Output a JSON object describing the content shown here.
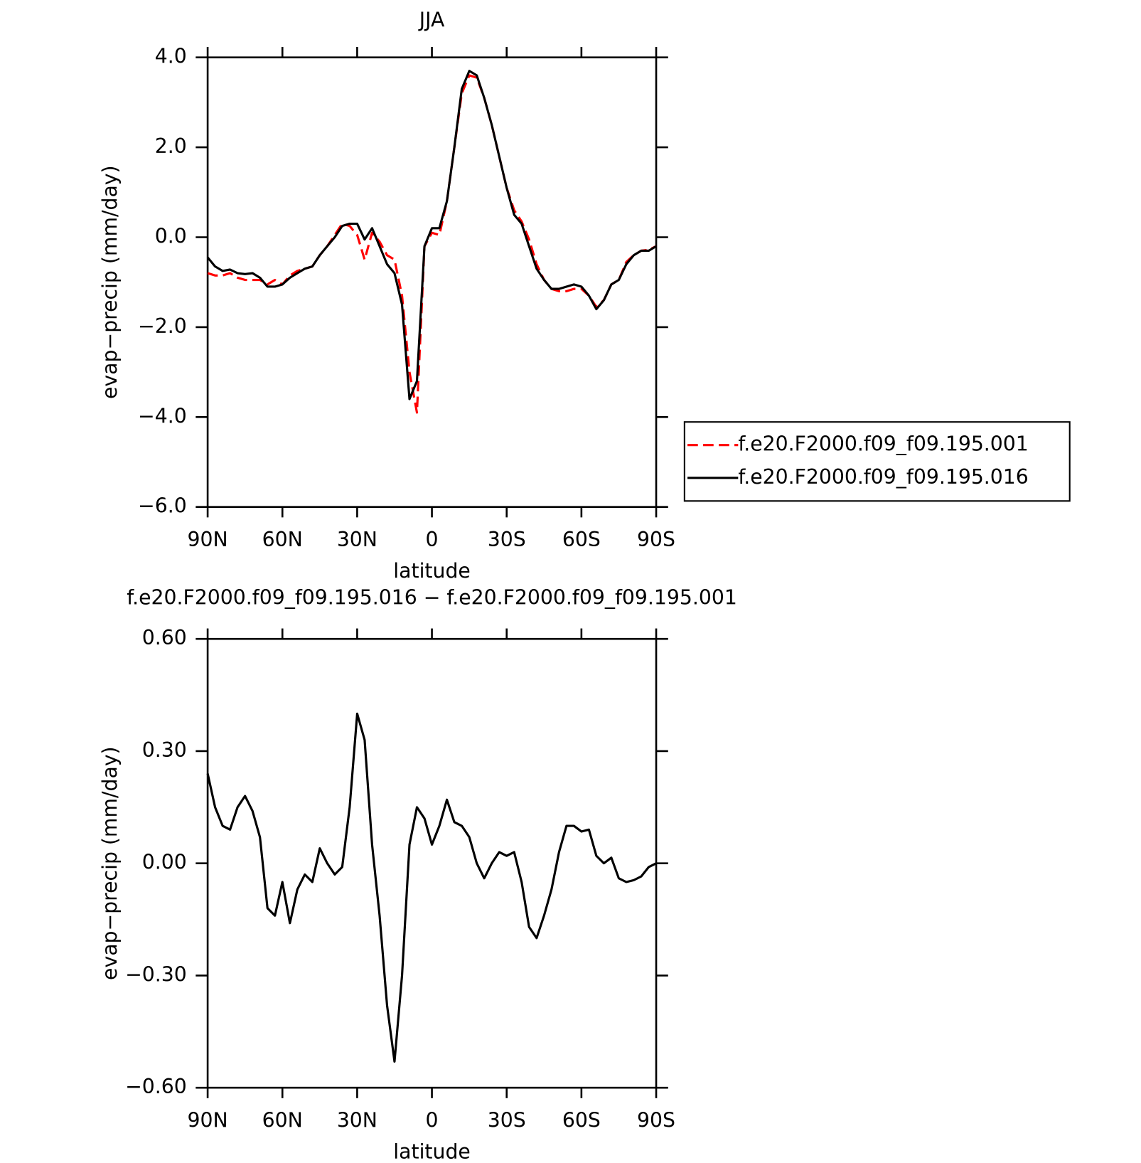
{
  "chart_data": [
    {
      "type": "line",
      "title": "JJA",
      "xlabel": "latitude",
      "ylabel": "evap−precip (mm/day)",
      "x": [
        90,
        87,
        84,
        81,
        78,
        75,
        72,
        69,
        66,
        63,
        60,
        57,
        54,
        51,
        48,
        45,
        42,
        39,
        36,
        33,
        30,
        27,
        24,
        21,
        18,
        15,
        12,
        9,
        6,
        3,
        0,
        -3,
        -6,
        -9,
        -12,
        -15,
        -18,
        -21,
        -24,
        -27,
        -30,
        -33,
        -36,
        -39,
        -42,
        -45,
        -48,
        -51,
        -54,
        -57,
        -60,
        -63,
        -66,
        -69,
        -72,
        -75,
        -78,
        -81,
        -84,
        -87,
        -90
      ],
      "xlim": [
        90,
        -90
      ],
      "xticks": [
        {
          "value": 90,
          "label": "90N"
        },
        {
          "value": 60,
          "label": "60N"
        },
        {
          "value": 30,
          "label": "30N"
        },
        0,
        {
          "value": -30,
          "label": "30S"
        },
        {
          "value": -60,
          "label": "60S"
        },
        {
          "value": -90,
          "label": "90S"
        }
      ],
      "ylim": [
        -6,
        4
      ],
      "yticks": [
        {
          "value": -6,
          "label": "−6.0"
        },
        {
          "value": -4,
          "label": "−4.0"
        },
        {
          "value": -2,
          "label": "−2.0"
        },
        {
          "value": 0,
          "label": "0.0"
        },
        {
          "value": 2,
          "label": "2.0"
        },
        {
          "value": 4,
          "label": "4.0"
        }
      ],
      "legend": "right",
      "series": [
        {
          "name": "f.e20.F2000.f09_f09.195.001",
          "color": "#ff0000",
          "dashed": true,
          "values": [
            -0.8,
            -0.85,
            -0.85,
            -0.8,
            -0.9,
            -0.95,
            -0.95,
            -0.95,
            -1.05,
            -0.95,
            -1.05,
            -0.85,
            -0.75,
            -0.7,
            -0.65,
            -0.4,
            -0.2,
            0.05,
            0.3,
            0.25,
            0.05,
            -0.5,
            0.1,
            -0.1,
            -0.4,
            -0.5,
            -1.3,
            -3.0,
            -3.9,
            -0.2,
            0.1,
            0.05,
            0.8,
            2.0,
            3.2,
            3.6,
            3.55,
            3.1,
            2.5,
            1.8,
            1.1,
            0.6,
            0.35,
            -0.05,
            -0.6,
            -0.95,
            -1.15,
            -1.2,
            -1.2,
            -1.15,
            -1.15,
            -1.3,
            -1.55,
            -1.4,
            -1.05,
            -0.95,
            -0.55,
            -0.4,
            -0.3,
            -0.28,
            -0.2
          ]
        },
        {
          "name": "f.e20.F2000.f09_f09.195.016",
          "color": "#000000",
          "dashed": false,
          "values": [
            -0.45,
            -0.65,
            -0.75,
            -0.72,
            -0.8,
            -0.82,
            -0.8,
            -0.9,
            -1.1,
            -1.1,
            -1.05,
            -0.9,
            -0.8,
            -0.7,
            -0.65,
            -0.4,
            -0.2,
            0.0,
            0.25,
            0.3,
            0.3,
            -0.05,
            0.2,
            -0.2,
            -0.6,
            -0.8,
            -1.5,
            -3.6,
            -3.2,
            -0.2,
            0.2,
            0.2,
            0.8,
            2.0,
            3.3,
            3.7,
            3.6,
            3.1,
            2.5,
            1.8,
            1.1,
            0.5,
            0.3,
            -0.2,
            -0.7,
            -0.95,
            -1.15,
            -1.15,
            -1.1,
            -1.05,
            -1.1,
            -1.3,
            -1.6,
            -1.4,
            -1.05,
            -0.95,
            -0.6,
            -0.4,
            -0.3,
            -0.3,
            -0.2
          ]
        }
      ]
    },
    {
      "type": "line",
      "title": "f.e20.F2000.f09_f09.195.016 − f.e20.F2000.f09_f09.195.001",
      "xlabel": "latitude",
      "ylabel": "evap−precip (mm/day)",
      "x": [
        90,
        87,
        84,
        81,
        78,
        75,
        72,
        69,
        66,
        63,
        60,
        57,
        54,
        51,
        48,
        45,
        42,
        39,
        36,
        33,
        30,
        27,
        24,
        21,
        18,
        15,
        12,
        9,
        6,
        3,
        0,
        -3,
        -6,
        -9,
        -12,
        -15,
        -18,
        -21,
        -24,
        -27,
        -30,
        -33,
        -36,
        -39,
        -42,
        -45,
        -48,
        -51,
        -54,
        -57,
        -60,
        -63,
        -66,
        -69,
        -72,
        -75,
        -78,
        -81,
        -84,
        -87,
        -90
      ],
      "xlim": [
        90,
        -90
      ],
      "xticks": [
        {
          "value": 90,
          "label": "90N"
        },
        {
          "value": 60,
          "label": "60N"
        },
        {
          "value": 30,
          "label": "30N"
        },
        0,
        {
          "value": -30,
          "label": "30S"
        },
        {
          "value": -60,
          "label": "60S"
        },
        {
          "value": -90,
          "label": "90S"
        }
      ],
      "ylim": [
        -0.6,
        0.6
      ],
      "yticks": [
        {
          "value": -0.6,
          "label": "−0.60"
        },
        {
          "value": -0.3,
          "label": "−0.30"
        },
        {
          "value": 0,
          "label": "0.00"
        },
        {
          "value": 0.3,
          "label": "0.30"
        },
        {
          "value": 0.6,
          "label": "0.60"
        }
      ],
      "series": [
        {
          "color": "#000000",
          "dashed": false,
          "values": [
            0.24,
            0.15,
            0.1,
            0.09,
            0.15,
            0.18,
            0.14,
            0.07,
            -0.12,
            -0.14,
            -0.05,
            -0.16,
            -0.07,
            -0.03,
            -0.05,
            0.04,
            0.0,
            -0.03,
            -0.01,
            0.15,
            0.4,
            0.33,
            0.05,
            -0.14,
            -0.38,
            -0.53,
            -0.3,
            0.05,
            0.15,
            0.12,
            0.05,
            0.1,
            0.17,
            0.11,
            0.1,
            0.07,
            0.0,
            -0.04,
            0.0,
            0.03,
            0.02,
            0.03,
            -0.05,
            -0.17,
            -0.2,
            -0.14,
            -0.07,
            0.03,
            0.1,
            0.1,
            0.085,
            0.09,
            0.02,
            0.0,
            0.015,
            -0.04,
            -0.05,
            -0.045,
            -0.035,
            -0.01,
            0.0
          ]
        }
      ]
    }
  ]
}
